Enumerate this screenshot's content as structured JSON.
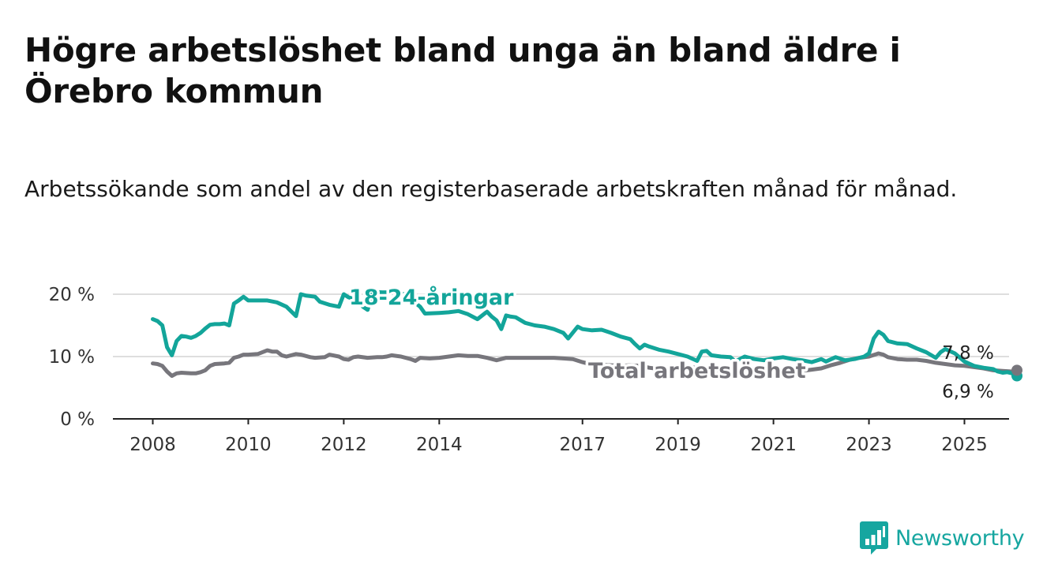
{
  "title": "Högre arbetslöshet bland unga än bland äldre i Örebro kommun",
  "subtitle": "Arbetssökande som andel av den registerbaserade arbetskraften månad för månad.",
  "brand": {
    "name": "Newsworthy",
    "color": "#16a6a0"
  },
  "chart_data": {
    "type": "line",
    "title": "Högre arbetslöshet bland unga än bland äldre i Örebro kommun",
    "subtitle": "Arbetssökande som andel av den registerbaserade arbetskraften månad för månad.",
    "xlabel": "",
    "ylabel": "",
    "xlim": [
      2007.7,
      2026.2
    ],
    "ylim": [
      0,
      20
    ],
    "grid": true,
    "legend": "inline labels",
    "x_ticks": [
      {
        "value": 2008,
        "label": "2008"
      },
      {
        "value": 2010,
        "label": "2010"
      },
      {
        "value": 2012,
        "label": "2012"
      },
      {
        "value": 2014,
        "label": "2014"
      },
      {
        "value": 2017,
        "label": "2017"
      },
      {
        "value": 2019,
        "label": "2019"
      },
      {
        "value": 2021,
        "label": "2021"
      },
      {
        "value": 2023,
        "label": "2023"
      },
      {
        "value": 2025,
        "label": "2025"
      }
    ],
    "y_ticks": [
      {
        "value": 0,
        "label": "0 %"
      },
      {
        "value": 10,
        "label": "10 %"
      },
      {
        "value": 20,
        "label": "20 %"
      }
    ],
    "series": [
      {
        "name": "18-24-åringar",
        "color": "#13a59a",
        "end_value": 6.9,
        "end_label": "6,9 %",
        "points": [
          [
            2008.0,
            16.0
          ],
          [
            2008.1,
            15.7
          ],
          [
            2008.2,
            15.0
          ],
          [
            2008.3,
            11.5
          ],
          [
            2008.4,
            10.2
          ],
          [
            2008.5,
            12.5
          ],
          [
            2008.6,
            13.3
          ],
          [
            2008.7,
            13.2
          ],
          [
            2008.8,
            13.0
          ],
          [
            2008.9,
            13.3
          ],
          [
            2009.0,
            13.8
          ],
          [
            2009.1,
            14.5
          ],
          [
            2009.2,
            15.1
          ],
          [
            2009.3,
            15.2
          ],
          [
            2009.4,
            15.2
          ],
          [
            2009.5,
            15.3
          ],
          [
            2009.6,
            15.0
          ],
          [
            2009.7,
            18.5
          ],
          [
            2009.8,
            19.0
          ],
          [
            2009.9,
            19.6
          ],
          [
            2010.0,
            19.0
          ],
          [
            2010.2,
            19.0
          ],
          [
            2010.4,
            19.0
          ],
          [
            2010.6,
            18.7
          ],
          [
            2010.8,
            18.0
          ],
          [
            2011.0,
            16.5
          ],
          [
            2011.1,
            20.0
          ],
          [
            2011.2,
            19.8
          ],
          [
            2011.4,
            19.6
          ],
          [
            2011.5,
            18.8
          ],
          [
            2011.7,
            18.3
          ],
          [
            2011.9,
            18.0
          ],
          [
            2012.0,
            20.0
          ],
          [
            2012.1,
            19.5
          ],
          [
            2012.3,
            19.0
          ],
          [
            2012.4,
            18.0
          ],
          [
            2012.5,
            17.5
          ],
          [
            2012.6,
            20.4
          ],
          [
            2012.8,
            20.3
          ],
          [
            2013.0,
            20.3
          ],
          [
            2013.1,
            19.8
          ],
          [
            2013.3,
            20.1
          ],
          [
            2013.5,
            18.6
          ],
          [
            2013.6,
            18.0
          ],
          [
            2013.7,
            16.9
          ],
          [
            2014.0,
            17.0
          ],
          [
            2014.2,
            17.1
          ],
          [
            2014.4,
            17.3
          ],
          [
            2014.6,
            16.8
          ],
          [
            2014.8,
            16.0
          ],
          [
            2015.0,
            17.2
          ],
          [
            2015.1,
            16.4
          ],
          [
            2015.2,
            15.8
          ],
          [
            2015.3,
            14.4
          ],
          [
            2015.4,
            16.6
          ],
          [
            2015.5,
            16.4
          ],
          [
            2015.6,
            16.3
          ],
          [
            2015.8,
            15.4
          ],
          [
            2016.0,
            15.0
          ],
          [
            2016.2,
            14.8
          ],
          [
            2016.4,
            14.4
          ],
          [
            2016.6,
            13.8
          ],
          [
            2016.7,
            12.9
          ],
          [
            2016.9,
            14.8
          ],
          [
            2017.0,
            14.4
          ],
          [
            2017.2,
            14.2
          ],
          [
            2017.4,
            14.3
          ],
          [
            2017.6,
            13.8
          ],
          [
            2017.8,
            13.2
          ],
          [
            2018.0,
            12.8
          ],
          [
            2018.1,
            12.0
          ],
          [
            2018.2,
            11.3
          ],
          [
            2018.3,
            11.9
          ],
          [
            2018.4,
            11.6
          ],
          [
            2018.6,
            11.1
          ],
          [
            2018.8,
            10.8
          ],
          [
            2019.0,
            10.4
          ],
          [
            2019.2,
            10.0
          ],
          [
            2019.4,
            9.3
          ],
          [
            2019.5,
            10.8
          ],
          [
            2019.6,
            10.9
          ],
          [
            2019.7,
            10.2
          ],
          [
            2019.9,
            10.0
          ],
          [
            2020.1,
            9.9
          ],
          [
            2020.2,
            9.2
          ],
          [
            2020.4,
            10.0
          ],
          [
            2020.6,
            9.6
          ],
          [
            2020.8,
            9.4
          ],
          [
            2021.0,
            9.7
          ],
          [
            2021.2,
            9.9
          ],
          [
            2021.4,
            9.6
          ],
          [
            2021.6,
            9.4
          ],
          [
            2021.8,
            9.1
          ],
          [
            2022.0,
            9.6
          ],
          [
            2022.1,
            9.2
          ],
          [
            2022.3,
            9.9
          ],
          [
            2022.5,
            9.4
          ],
          [
            2022.7,
            9.6
          ],
          [
            2022.9,
            10.0
          ],
          [
            2023.0,
            10.5
          ],
          [
            2023.1,
            12.9
          ],
          [
            2023.2,
            14.0
          ],
          [
            2023.3,
            13.5
          ],
          [
            2023.4,
            12.5
          ],
          [
            2023.6,
            12.1
          ],
          [
            2023.8,
            12.0
          ],
          [
            2024.0,
            11.3
          ],
          [
            2024.2,
            10.7
          ],
          [
            2024.4,
            9.8
          ],
          [
            2024.5,
            10.7
          ],
          [
            2024.6,
            11.2
          ],
          [
            2024.8,
            10.5
          ],
          [
            2025.0,
            9.2
          ],
          [
            2025.2,
            8.5
          ],
          [
            2025.4,
            8.2
          ],
          [
            2025.6,
            8.0
          ],
          [
            2025.7,
            7.6
          ],
          [
            2025.8,
            7.4
          ],
          [
            2025.9,
            7.5
          ],
          [
            2026.0,
            7.3
          ],
          [
            2026.1,
            6.9
          ]
        ]
      },
      {
        "name": "Total arbetslöshet",
        "color": "#77767c",
        "end_value": 7.8,
        "end_label": "7,8 %",
        "points": [
          [
            2008.0,
            8.9
          ],
          [
            2008.1,
            8.8
          ],
          [
            2008.2,
            8.5
          ],
          [
            2008.3,
            7.6
          ],
          [
            2008.4,
            6.9
          ],
          [
            2008.5,
            7.3
          ],
          [
            2008.6,
            7.4
          ],
          [
            2008.8,
            7.3
          ],
          [
            2008.9,
            7.3
          ],
          [
            2009.0,
            7.5
          ],
          [
            2009.1,
            7.8
          ],
          [
            2009.2,
            8.5
          ],
          [
            2009.3,
            8.8
          ],
          [
            2009.5,
            8.9
          ],
          [
            2009.6,
            9.0
          ],
          [
            2009.7,
            9.8
          ],
          [
            2009.8,
            10.0
          ],
          [
            2009.9,
            10.3
          ],
          [
            2010.0,
            10.3
          ],
          [
            2010.2,
            10.4
          ],
          [
            2010.4,
            11.0
          ],
          [
            2010.5,
            10.8
          ],
          [
            2010.6,
            10.8
          ],
          [
            2010.7,
            10.2
          ],
          [
            2010.8,
            10.0
          ],
          [
            2011.0,
            10.4
          ],
          [
            2011.1,
            10.3
          ],
          [
            2011.3,
            9.9
          ],
          [
            2011.4,
            9.8
          ],
          [
            2011.6,
            9.9
          ],
          [
            2011.7,
            10.3
          ],
          [
            2011.9,
            10.0
          ],
          [
            2012.0,
            9.6
          ],
          [
            2012.1,
            9.5
          ],
          [
            2012.2,
            9.9
          ],
          [
            2012.3,
            10.0
          ],
          [
            2012.5,
            9.8
          ],
          [
            2012.7,
            9.9
          ],
          [
            2012.8,
            9.9
          ],
          [
            2012.9,
            10.0
          ],
          [
            2013.0,
            10.2
          ],
          [
            2013.2,
            10.0
          ],
          [
            2013.4,
            9.6
          ],
          [
            2013.5,
            9.3
          ],
          [
            2013.6,
            9.8
          ],
          [
            2013.8,
            9.7
          ],
          [
            2014.0,
            9.8
          ],
          [
            2014.2,
            10.0
          ],
          [
            2014.4,
            10.2
          ],
          [
            2014.6,
            10.1
          ],
          [
            2014.8,
            10.1
          ],
          [
            2015.0,
            9.8
          ],
          [
            2015.2,
            9.4
          ],
          [
            2015.4,
            9.8
          ],
          [
            2015.6,
            9.8
          ],
          [
            2015.8,
            9.8
          ],
          [
            2016.0,
            9.8
          ],
          [
            2016.2,
            9.8
          ],
          [
            2016.4,
            9.8
          ],
          [
            2016.6,
            9.7
          ],
          [
            2016.8,
            9.6
          ],
          [
            2017.0,
            9.1
          ],
          [
            2017.2,
            8.7
          ],
          [
            2017.4,
            8.7
          ],
          [
            2017.6,
            8.6
          ],
          [
            2017.8,
            8.5
          ],
          [
            2018.0,
            8.6
          ],
          [
            2018.2,
            8.5
          ],
          [
            2018.4,
            8.2
          ],
          [
            2018.6,
            8.0
          ],
          [
            2018.8,
            8.2
          ],
          [
            2019.0,
            8.2
          ],
          [
            2019.2,
            8.3
          ],
          [
            2019.4,
            8.2
          ],
          [
            2019.6,
            7.9
          ],
          [
            2019.8,
            7.6
          ],
          [
            2020.0,
            7.9
          ],
          [
            2020.2,
            7.7
          ],
          [
            2020.4,
            7.6
          ],
          [
            2020.6,
            7.5
          ],
          [
            2020.8,
            7.9
          ],
          [
            2021.0,
            7.8
          ],
          [
            2021.2,
            7.9
          ],
          [
            2021.4,
            7.6
          ],
          [
            2021.6,
            7.7
          ],
          [
            2021.8,
            7.9
          ],
          [
            2022.0,
            8.1
          ],
          [
            2022.2,
            8.6
          ],
          [
            2022.4,
            9.0
          ],
          [
            2022.6,
            9.5
          ],
          [
            2022.8,
            9.8
          ],
          [
            2023.0,
            10.0
          ],
          [
            2023.2,
            10.5
          ],
          [
            2023.3,
            10.3
          ],
          [
            2023.4,
            9.9
          ],
          [
            2023.6,
            9.6
          ],
          [
            2023.8,
            9.5
          ],
          [
            2024.0,
            9.5
          ],
          [
            2024.2,
            9.3
          ],
          [
            2024.4,
            9.0
          ],
          [
            2024.6,
            8.8
          ],
          [
            2024.8,
            8.6
          ],
          [
            2025.0,
            8.5
          ],
          [
            2025.2,
            8.3
          ],
          [
            2025.4,
            8.1
          ],
          [
            2025.6,
            7.8
          ],
          [
            2025.8,
            7.7
          ],
          [
            2026.0,
            7.6
          ],
          [
            2026.1,
            7.8
          ]
        ]
      }
    ]
  }
}
